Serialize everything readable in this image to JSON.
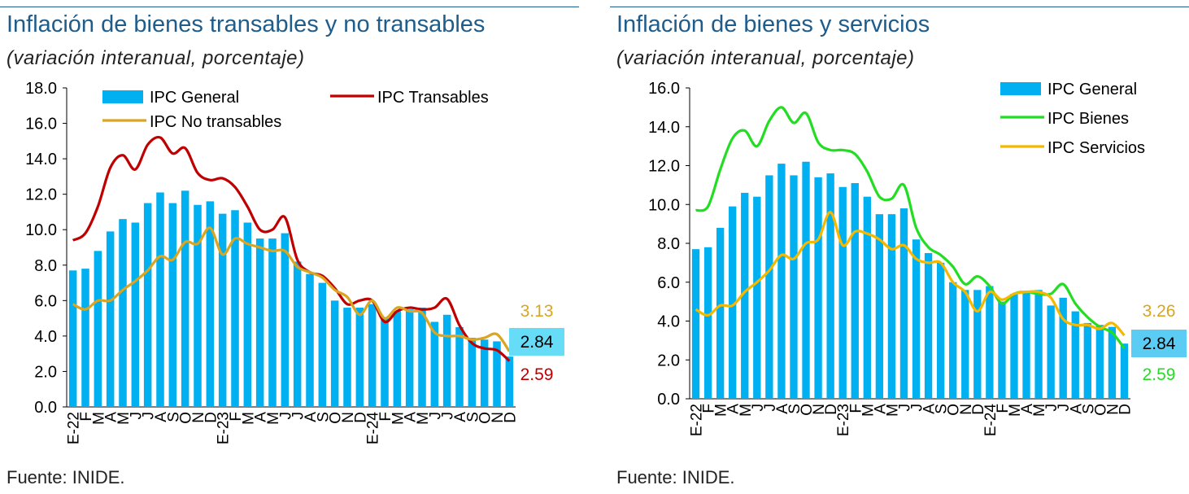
{
  "panels": [
    {
      "title": "Inflación de bienes transables y no transables",
      "subtitle": "(variación interanual, porcentaje)",
      "source": "Fuente: INIDE.",
      "chart_data": {
        "type": "bar+line",
        "ylim": [
          0,
          18
        ],
        "yticks": [
          "0.0",
          "2.0",
          "4.0",
          "6.0",
          "8.0",
          "10.0",
          "12.0",
          "14.0",
          "16.0",
          "18.0"
        ],
        "categories": [
          "E-22",
          "F",
          "M",
          "A",
          "M",
          "J",
          "J",
          "A",
          "S",
          "O",
          "N",
          "D",
          "E-23",
          "F",
          "M",
          "A",
          "M",
          "J",
          "J",
          "A",
          "S",
          "O",
          "N",
          "D",
          "E-24",
          "F",
          "M",
          "A",
          "M",
          "J",
          "J",
          "A",
          "S",
          "O",
          "N",
          "D"
        ],
        "series": [
          {
            "name": "IPC General",
            "kind": "bar",
            "color": "#00b0f0",
            "values": [
              7.7,
              7.8,
              8.8,
              9.9,
              10.6,
              10.4,
              11.5,
              12.1,
              11.5,
              12.2,
              11.4,
              11.6,
              10.9,
              11.1,
              10.4,
              9.5,
              9.5,
              9.8,
              8.2,
              7.5,
              7.0,
              6.0,
              5.6,
              5.6,
              5.8,
              5.0,
              5.4,
              5.5,
              5.6,
              4.8,
              5.2,
              4.5,
              3.9,
              3.8,
              3.7,
              2.84
            ]
          },
          {
            "name": "IPC Transables",
            "kind": "line",
            "color": "#c00000",
            "values": [
              9.4,
              9.8,
              11.3,
              13.5,
              14.2,
              13.4,
              14.8,
              15.2,
              14.3,
              14.6,
              13.2,
              12.8,
              12.9,
              12.4,
              11.3,
              10.0,
              10.0,
              10.7,
              8.3,
              7.6,
              7.4,
              6.7,
              5.8,
              6.0,
              6.0,
              4.8,
              5.4,
              5.6,
              5.5,
              5.6,
              6.1,
              4.6,
              3.6,
              3.3,
              3.2,
              2.59
            ]
          },
          {
            "name": "IPC No transables",
            "kind": "line",
            "color": "#daa520",
            "values": [
              5.8,
              5.5,
              6.0,
              6.0,
              6.6,
              7.1,
              7.7,
              8.5,
              8.3,
              9.3,
              9.2,
              10.1,
              8.6,
              9.5,
              9.2,
              9.0,
              8.8,
              8.8,
              7.9,
              7.6,
              7.3,
              6.6,
              6.2,
              5.2,
              6.0,
              5.0,
              5.6,
              5.4,
              5.3,
              4.2,
              4.0,
              4.0,
              3.8,
              3.9,
              4.1,
              3.13
            ]
          }
        ],
        "legend": {
          "placement": "top-left",
          "labels": [
            "IPC General",
            "IPC Transables",
            "IPC No transables"
          ]
        },
        "end_labels": [
          {
            "text": "3.13",
            "color": "#daa520"
          },
          {
            "text": "2.84",
            "color": "#000000",
            "box": "#67dcf7"
          },
          {
            "text": "2.59",
            "color": "#c00000"
          }
        ]
      }
    },
    {
      "title": "Inflación de bienes y servicios",
      "subtitle": "(variación interanual, porcentaje)",
      "source": "Fuente: INIDE.",
      "chart_data": {
        "type": "bar+line",
        "ylim": [
          0,
          16
        ],
        "yticks": [
          "0.0",
          "2.0",
          "4.0",
          "6.0",
          "8.0",
          "10.0",
          "12.0",
          "14.0",
          "16.0"
        ],
        "categories": [
          "E-22",
          "F",
          "M",
          "A",
          "M",
          "J",
          "J",
          "A",
          "S",
          "O",
          "N",
          "D",
          "E-23",
          "F",
          "M",
          "A",
          "M",
          "J",
          "J",
          "A",
          "S",
          "O",
          "N",
          "D",
          "E-24",
          "F",
          "M",
          "A",
          "M",
          "J",
          "J",
          "A",
          "S",
          "O",
          "N",
          "D"
        ],
        "series": [
          {
            "name": "IPC General",
            "kind": "bar",
            "color": "#00b0f0",
            "values": [
              7.7,
              7.8,
              8.8,
              9.9,
              10.6,
              10.4,
              11.5,
              12.1,
              11.5,
              12.2,
              11.4,
              11.6,
              10.9,
              11.1,
              10.4,
              9.5,
              9.5,
              9.8,
              8.2,
              7.5,
              7.0,
              6.0,
              5.6,
              5.6,
              5.8,
              5.0,
              5.4,
              5.5,
              5.6,
              4.8,
              5.2,
              4.5,
              3.9,
              3.8,
              3.7,
              2.84
            ]
          },
          {
            "name": "IPC Bienes",
            "kind": "line",
            "color": "#22dd22",
            "values": [
              9.7,
              9.9,
              11.8,
              13.4,
              13.8,
              13.0,
              14.3,
              15.0,
              14.2,
              14.7,
              13.2,
              12.8,
              12.8,
              12.6,
              11.7,
              10.4,
              10.3,
              11.0,
              8.8,
              7.8,
              7.4,
              6.8,
              5.9,
              6.3,
              5.8,
              4.9,
              5.4,
              5.5,
              5.4,
              5.4,
              5.9,
              4.9,
              4.2,
              3.7,
              3.4,
              2.59
            ]
          },
          {
            "name": "IPC Servicios",
            "kind": "line",
            "color": "#f5b800",
            "values": [
              4.6,
              4.3,
              4.8,
              4.8,
              5.5,
              6.0,
              6.6,
              7.4,
              7.2,
              8.0,
              8.2,
              9.6,
              7.9,
              8.6,
              8.5,
              8.2,
              7.7,
              7.9,
              7.2,
              7.0,
              7.0,
              6.0,
              5.5,
              4.5,
              5.5,
              5.1,
              5.4,
              5.5,
              5.5,
              5.2,
              4.1,
              3.8,
              3.8,
              3.6,
              3.9,
              3.26
            ]
          }
        ],
        "legend": {
          "placement": "top-right",
          "labels": [
            "IPC General",
            "IPC Bienes",
            "IPC Servicios"
          ]
        },
        "end_labels": [
          {
            "text": "3.26",
            "color": "#daa520"
          },
          {
            "text": "2.84",
            "color": "#000000",
            "box": "#5bcdf5"
          },
          {
            "text": "2.59",
            "color": "#22dd22"
          }
        ]
      }
    }
  ]
}
